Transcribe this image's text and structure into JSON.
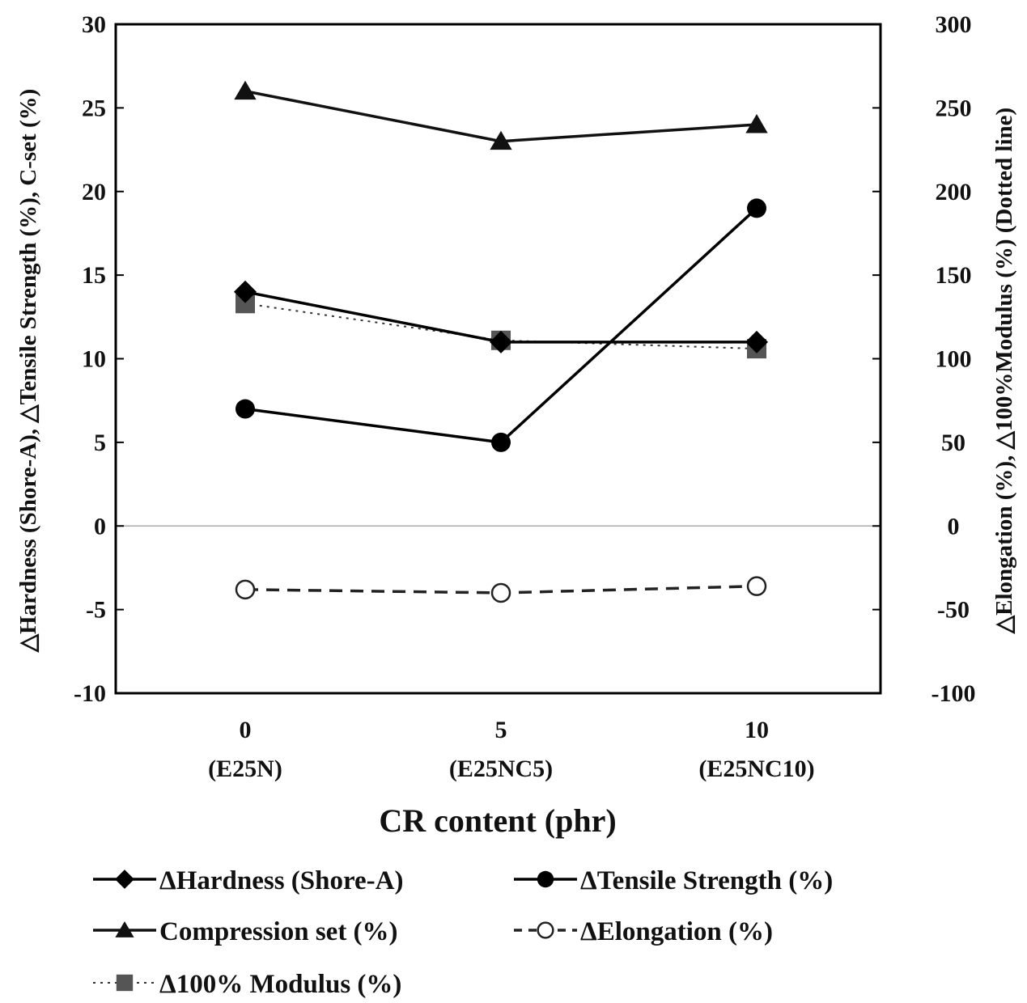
{
  "chart_data": {
    "type": "line",
    "xlabel": "CR content (phr)",
    "ylabel_left": "△Hardness (Shore-A), △Tensile Strength (%), C-set (%)",
    "ylabel_right": "△Elongation (%), △100%Modulus (%) (Dotted line)",
    "categories": [
      {
        "value": "0",
        "sample": "(E25N)"
      },
      {
        "value": "5",
        "sample": "(E25NC5)"
      },
      {
        "value": "10",
        "sample": "(E25NC10)"
      }
    ],
    "ylim_left": [
      -10,
      30
    ],
    "ylim_right": [
      -100,
      300
    ],
    "yticks_left": [
      "-10",
      "-5",
      "0",
      "5",
      "10",
      "15",
      "20",
      "25",
      "30"
    ],
    "yticks_right": [
      "-100",
      "-50",
      "0",
      "50",
      "100",
      "150",
      "200",
      "250",
      "300"
    ],
    "zero_line": true,
    "grid": false,
    "legend_position": "bottom",
    "series": [
      {
        "name": "ΔHardness (Shore-A)",
        "axis": "left",
        "marker": "diamond",
        "line": "solid",
        "color": "#000000",
        "values": [
          14,
          11,
          11
        ]
      },
      {
        "name": "ΔTensile Strength (%)",
        "axis": "left",
        "marker": "circle",
        "line": "solid",
        "color": "#000000",
        "values": [
          7,
          5,
          19
        ]
      },
      {
        "name": "Compression set (%)",
        "axis": "left",
        "marker": "triangle",
        "line": "solid",
        "color": "#111111",
        "values": [
          26,
          23,
          24
        ]
      },
      {
        "name": "ΔElongation (%)",
        "axis": "right",
        "marker": "circle-open",
        "line": "dashed",
        "color": "#222222",
        "values": [
          -38,
          -40,
          -36
        ]
      },
      {
        "name": "Δ100% Modulus (%)",
        "axis": "right",
        "marker": "square",
        "line": "dotted",
        "color": "#555555",
        "values": [
          133,
          111,
          106
        ]
      }
    ]
  }
}
